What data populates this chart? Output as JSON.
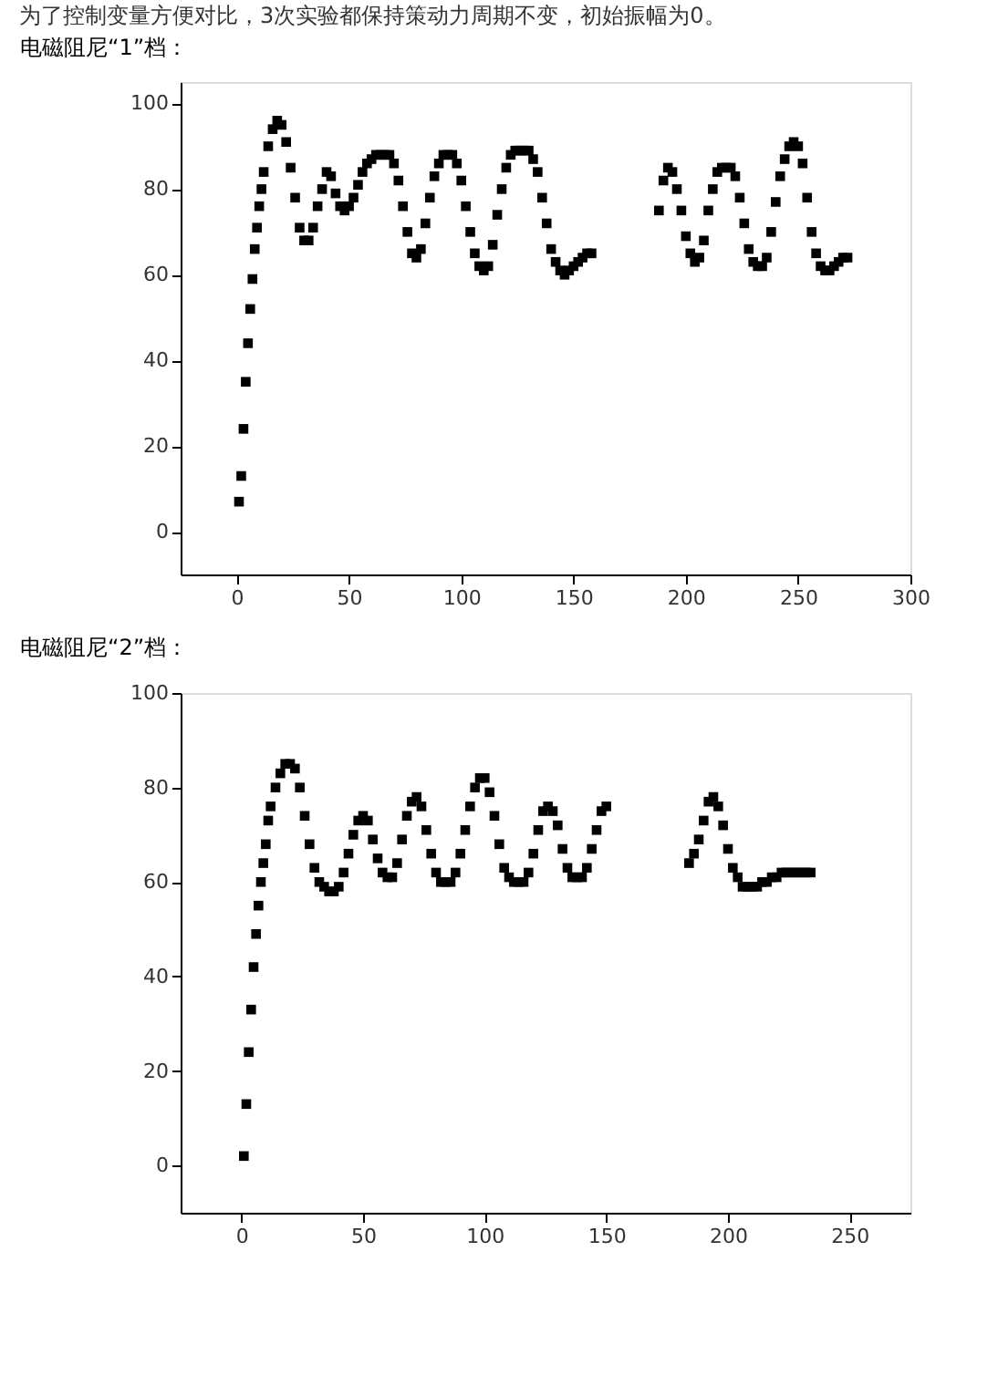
{
  "chart_data": [
    {
      "type": "scatter",
      "title": "电磁阻尼“1”档：",
      "annotations": [
        "为了控制变量方便对比，3次实验都保持策动力周期不变，初始振幅为0。"
      ],
      "marker": "square",
      "grid": false,
      "xlim": [
        -25,
        300
      ],
      "xticks": [
        0,
        50,
        100,
        150,
        200,
        250,
        300
      ],
      "ylim": [
        -10,
        105
      ],
      "yticks": [
        0,
        20,
        40,
        60,
        80,
        100
      ],
      "series": [
        {
          "color": "#000000",
          "x": [
            1,
            2,
            3,
            4,
            5,
            6,
            7,
            8,
            9,
            10,
            11,
            12,
            14,
            16,
            18,
            20,
            22,
            24,
            26,
            28,
            30,
            32,
            34,
            36,
            38,
            40,
            42,
            44,
            46,
            48,
            50,
            52,
            54,
            56,
            58,
            60,
            62,
            64,
            66,
            68,
            70,
            72,
            74,
            76,
            78,
            80,
            82,
            84,
            86,
            88,
            90,
            92,
            94,
            96,
            98,
            100,
            102,
            104,
            106,
            108,
            110,
            112,
            114,
            116,
            118,
            120,
            122,
            124,
            126,
            128,
            130,
            132,
            134,
            136,
            138,
            140,
            142,
            144,
            146,
            148,
            150,
            152,
            154,
            156,
            158,
            188,
            190,
            192,
            194,
            196,
            198,
            200,
            202,
            204,
            206,
            208,
            210,
            212,
            214,
            216,
            218,
            220,
            222,
            224,
            226,
            228,
            230,
            232,
            234,
            236,
            238,
            240,
            242,
            244,
            246,
            248,
            250,
            252,
            254,
            256,
            258,
            260,
            262,
            264,
            266,
            268,
            270,
            272
          ],
          "values": [
            7,
            13,
            24,
            35,
            44,
            52,
            59,
            66,
            71,
            76,
            80,
            84,
            90,
            94,
            96,
            95,
            91,
            85,
            78,
            71,
            68,
            68,
            71,
            76,
            80,
            84,
            83,
            79,
            76,
            75,
            76,
            78,
            81,
            84,
            86,
            87,
            88,
            88,
            88,
            88,
            86,
            82,
            76,
            70,
            65,
            64,
            66,
            72,
            78,
            83,
            86,
            88,
            88,
            88,
            86,
            82,
            76,
            70,
            65,
            62,
            61,
            62,
            67,
            74,
            80,
            85,
            88,
            89,
            89,
            89,
            89,
            87,
            84,
            78,
            72,
            66,
            63,
            61,
            60,
            61,
            62,
            63,
            64,
            65,
            65,
            75,
            82,
            85,
            84,
            80,
            75,
            69,
            65,
            63,
            64,
            68,
            75,
            80,
            84,
            85,
            85,
            85,
            83,
            78,
            72,
            66,
            63,
            62,
            62,
            64,
            70,
            77,
            83,
            87,
            90,
            91,
            90,
            86,
            78,
            70,
            65,
            62,
            61,
            61,
            62,
            63,
            64,
            64
          ]
        }
      ]
    },
    {
      "type": "scatter",
      "title": "电磁阻尼“2”档：",
      "marker": "square",
      "grid": false,
      "xlim": [
        -25,
        275
      ],
      "xticks": [
        0,
        50,
        100,
        150,
        200,
        250
      ],
      "ylim": [
        -10,
        100
      ],
      "yticks": [
        0,
        20,
        40,
        60,
        80,
        100
      ],
      "series": [
        {
          "color": "#000000",
          "x": [
            1,
            2,
            3,
            4,
            5,
            6,
            7,
            8,
            9,
            10,
            11,
            12,
            14,
            16,
            18,
            20,
            22,
            24,
            26,
            28,
            30,
            32,
            34,
            36,
            38,
            40,
            42,
            44,
            46,
            48,
            50,
            52,
            54,
            56,
            58,
            60,
            62,
            64,
            66,
            68,
            70,
            72,
            74,
            76,
            78,
            80,
            82,
            84,
            86,
            88,
            90,
            92,
            94,
            96,
            98,
            100,
            102,
            104,
            106,
            108,
            110,
            112,
            114,
            116,
            118,
            120,
            122,
            124,
            126,
            128,
            130,
            132,
            134,
            136,
            138,
            140,
            142,
            144,
            146,
            148,
            150,
            184,
            186,
            188,
            190,
            192,
            194,
            196,
            198,
            200,
            202,
            204,
            206,
            208,
            210,
            212,
            214,
            216,
            218,
            220,
            222,
            224,
            226,
            228,
            230,
            232,
            234
          ],
          "values": [
            2,
            13,
            24,
            33,
            42,
            49,
            55,
            60,
            64,
            68,
            73,
            76,
            80,
            83,
            85,
            85,
            84,
            80,
            74,
            68,
            63,
            60,
            59,
            58,
            58,
            59,
            62,
            66,
            70,
            73,
            74,
            73,
            69,
            65,
            62,
            61,
            61,
            64,
            69,
            74,
            77,
            78,
            76,
            71,
            66,
            62,
            60,
            60,
            60,
            62,
            66,
            71,
            76,
            80,
            82,
            82,
            79,
            74,
            68,
            63,
            61,
            60,
            60,
            60,
            62,
            66,
            71,
            75,
            76,
            75,
            72,
            67,
            63,
            61,
            61,
            61,
            63,
            67,
            71,
            75,
            76,
            64,
            66,
            69,
            73,
            77,
            78,
            76,
            72,
            67,
            63,
            61,
            59,
            59,
            59,
            59,
            60,
            60,
            61,
            61,
            62,
            62,
            62,
            62,
            62,
            62,
            62
          ]
        }
      ]
    }
  ]
}
